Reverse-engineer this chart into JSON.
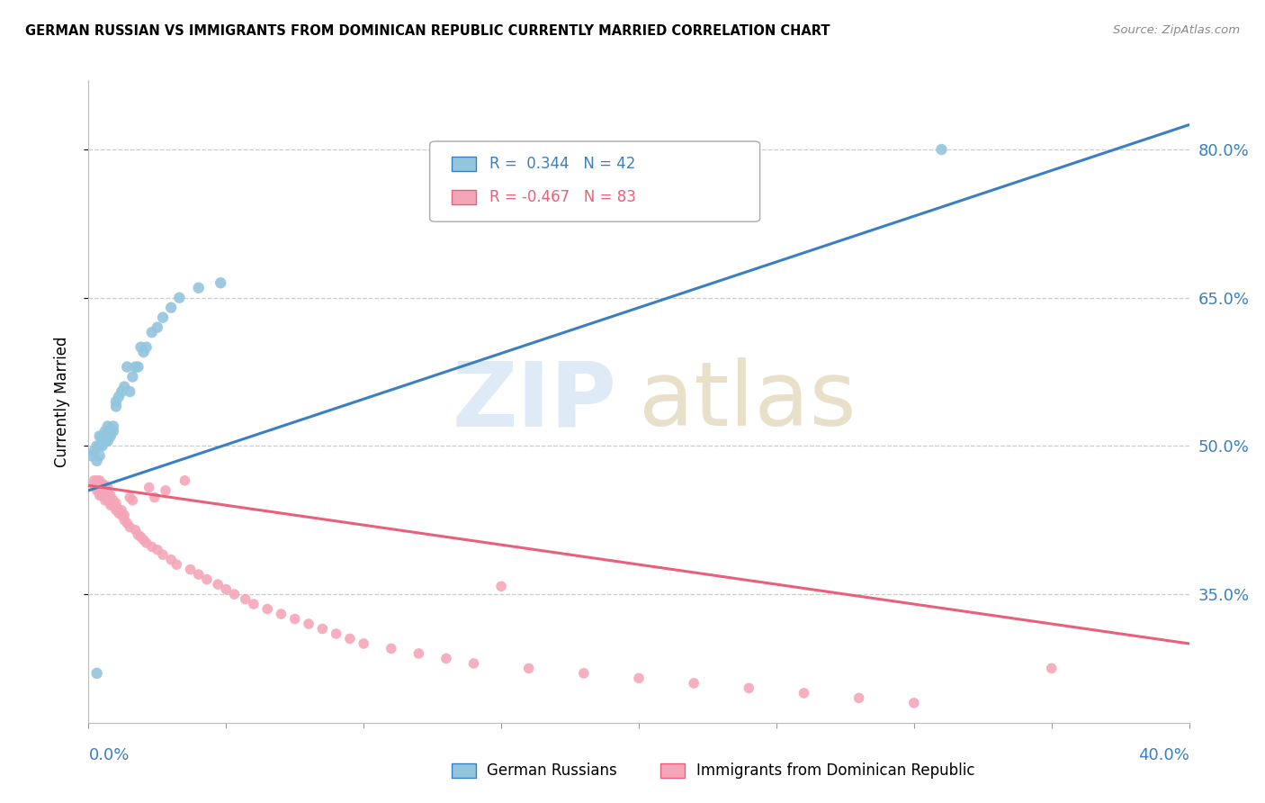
{
  "title": "GERMAN RUSSIAN VS IMMIGRANTS FROM DOMINICAN REPUBLIC CURRENTLY MARRIED CORRELATION CHART",
  "source": "Source: ZipAtlas.com",
  "ylabel": "Currently Married",
  "right_ytick_labels": [
    "35.0%",
    "50.0%",
    "65.0%",
    "80.0%"
  ],
  "right_ytick_vals": [
    0.35,
    0.5,
    0.65,
    0.8
  ],
  "legend1_R": "0.344",
  "legend1_N": "42",
  "legend2_R": "-0.467",
  "legend2_N": "83",
  "blue_color": "#92c5de",
  "pink_color": "#f4a6b8",
  "trend_blue": "#3a7fc1",
  "trend_pink": "#e8607a",
  "xlim": [
    0.0,
    0.4
  ],
  "ylim": [
    0.22,
    0.87
  ],
  "blue_trend_x": [
    0.0,
    0.4
  ],
  "blue_trend_y": [
    0.455,
    0.825
  ],
  "pink_trend_x": [
    0.0,
    0.4
  ],
  "pink_trend_y": [
    0.46,
    0.3
  ],
  "blue_scatter_x": [
    0.001,
    0.002,
    0.003,
    0.003,
    0.004,
    0.004,
    0.004,
    0.005,
    0.005,
    0.005,
    0.006,
    0.006,
    0.006,
    0.007,
    0.007,
    0.007,
    0.008,
    0.008,
    0.009,
    0.009,
    0.01,
    0.01,
    0.011,
    0.012,
    0.013,
    0.014,
    0.015,
    0.016,
    0.017,
    0.018,
    0.019,
    0.02,
    0.021,
    0.023,
    0.025,
    0.027,
    0.03,
    0.033,
    0.04,
    0.048,
    0.31,
    0.003
  ],
  "blue_scatter_y": [
    0.49,
    0.495,
    0.485,
    0.5,
    0.49,
    0.5,
    0.51,
    0.5,
    0.505,
    0.51,
    0.505,
    0.51,
    0.515,
    0.505,
    0.51,
    0.52,
    0.51,
    0.515,
    0.515,
    0.52,
    0.54,
    0.545,
    0.55,
    0.555,
    0.56,
    0.58,
    0.555,
    0.57,
    0.58,
    0.58,
    0.6,
    0.595,
    0.6,
    0.615,
    0.62,
    0.63,
    0.64,
    0.65,
    0.66,
    0.665,
    0.8,
    0.27
  ],
  "pink_scatter_x": [
    0.002,
    0.002,
    0.003,
    0.003,
    0.003,
    0.004,
    0.004,
    0.004,
    0.004,
    0.005,
    0.005,
    0.005,
    0.005,
    0.006,
    0.006,
    0.006,
    0.006,
    0.007,
    0.007,
    0.007,
    0.007,
    0.008,
    0.008,
    0.008,
    0.009,
    0.009,
    0.01,
    0.01,
    0.01,
    0.011,
    0.011,
    0.012,
    0.012,
    0.013,
    0.013,
    0.014,
    0.015,
    0.015,
    0.016,
    0.017,
    0.018,
    0.019,
    0.02,
    0.021,
    0.022,
    0.023,
    0.024,
    0.025,
    0.027,
    0.028,
    0.03,
    0.032,
    0.035,
    0.037,
    0.04,
    0.043,
    0.047,
    0.05,
    0.053,
    0.057,
    0.06,
    0.065,
    0.07,
    0.075,
    0.08,
    0.085,
    0.09,
    0.095,
    0.1,
    0.11,
    0.12,
    0.13,
    0.14,
    0.15,
    0.16,
    0.18,
    0.2,
    0.22,
    0.24,
    0.26,
    0.28,
    0.3,
    0.35
  ],
  "pink_scatter_y": [
    0.465,
    0.46,
    0.46,
    0.455,
    0.465,
    0.455,
    0.45,
    0.46,
    0.465,
    0.45,
    0.455,
    0.458,
    0.462,
    0.445,
    0.45,
    0.455,
    0.46,
    0.445,
    0.448,
    0.452,
    0.458,
    0.44,
    0.445,
    0.45,
    0.44,
    0.445,
    0.435,
    0.438,
    0.442,
    0.432,
    0.435,
    0.43,
    0.435,
    0.425,
    0.43,
    0.422,
    0.448,
    0.418,
    0.445,
    0.415,
    0.41,
    0.408,
    0.405,
    0.402,
    0.458,
    0.398,
    0.448,
    0.395,
    0.39,
    0.455,
    0.385,
    0.38,
    0.465,
    0.375,
    0.37,
    0.365,
    0.36,
    0.355,
    0.35,
    0.345,
    0.34,
    0.335,
    0.33,
    0.325,
    0.32,
    0.315,
    0.31,
    0.305,
    0.3,
    0.295,
    0.29,
    0.285,
    0.28,
    0.358,
    0.275,
    0.27,
    0.265,
    0.26,
    0.255,
    0.25,
    0.245,
    0.24,
    0.275
  ]
}
